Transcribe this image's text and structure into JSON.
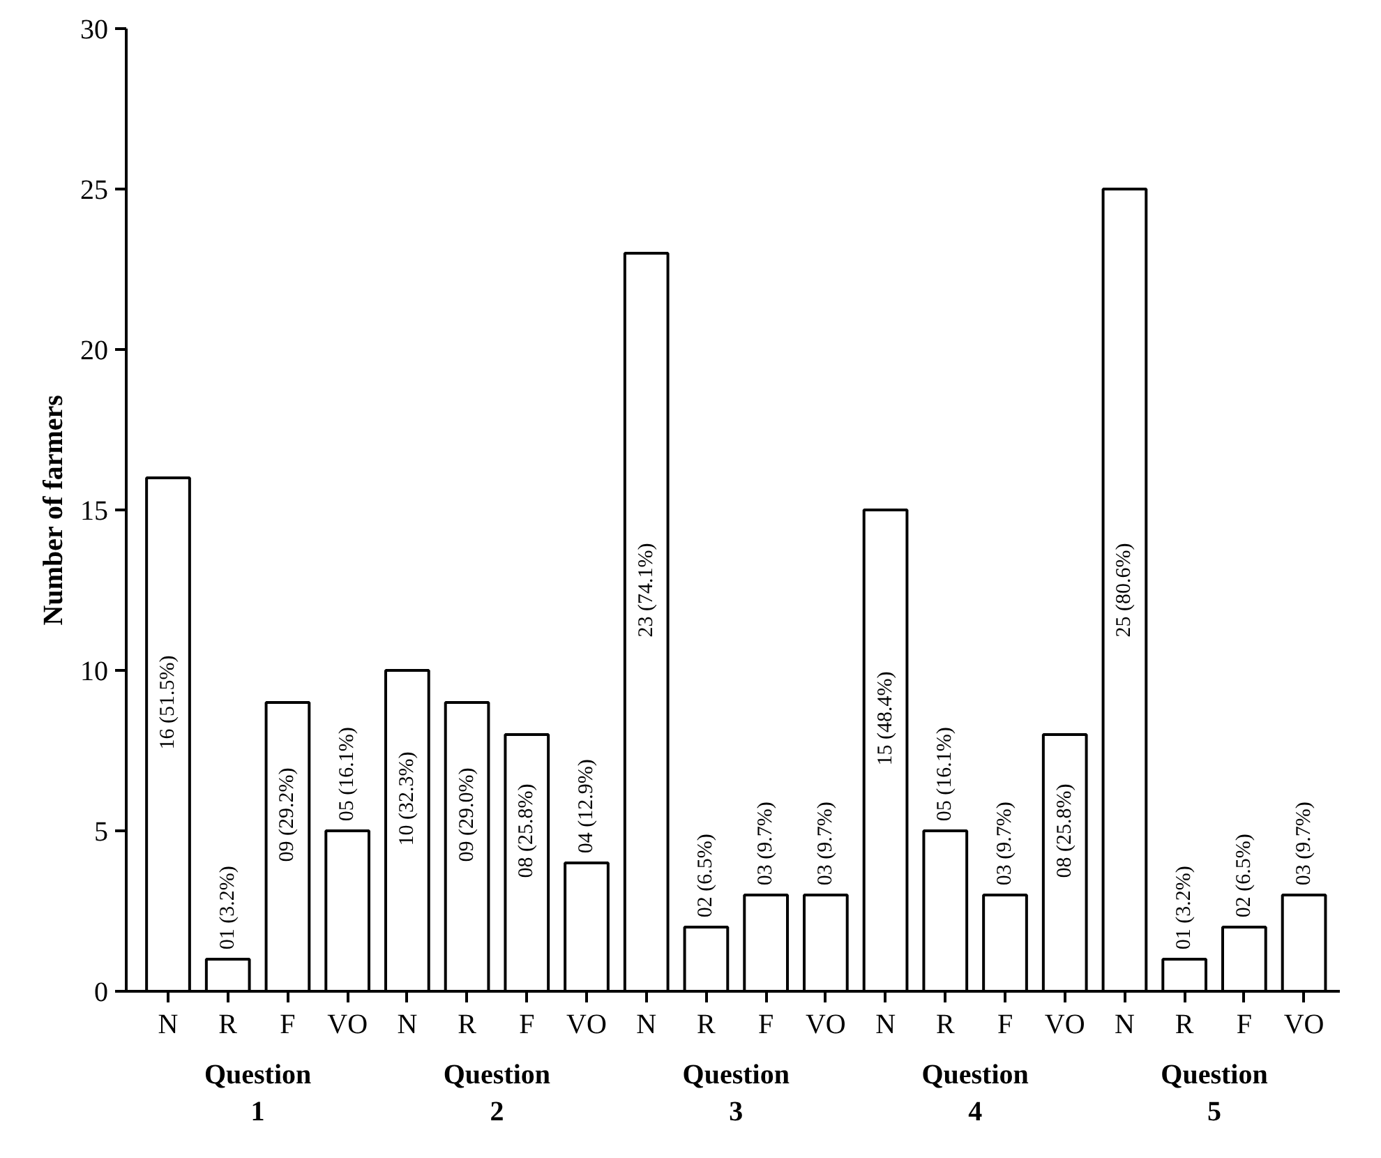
{
  "chart_data": {
    "type": "bar",
    "ylabel": "Number of farmers",
    "categories": [
      "N",
      "R",
      "F",
      "VO",
      "N",
      "R",
      "F",
      "VO",
      "N",
      "R",
      "F",
      "VO",
      "N",
      "R",
      "F",
      "VO",
      "N",
      "R",
      "F",
      "VO"
    ],
    "values": [
      16,
      1,
      9,
      5,
      10,
      9,
      8,
      4,
      23,
      2,
      3,
      3,
      15,
      5,
      3,
      8,
      25,
      1,
      2,
      3
    ],
    "color": "#ffffff",
    "value_labels": [
      "16 (51.5%)",
      "01 (3.2%)",
      "09 (29.2%)",
      "05 (16.1%)",
      "10 (32.3%)",
      "09 (29.0%)",
      "08 (25.8%)",
      "04 (12.9%)",
      "23 (74.1%)",
      "02 (6.5%)",
      "03 (9.7%)",
      "03 (9.7%)",
      "15 (48.4%)",
      "05 (16.1%)",
      "03 (9.7%)",
      "08 (25.8%)",
      "25 (80.6%)",
      "01 (3.2%)",
      "02 (6.5%)",
      "03 (9.7%)"
    ],
    "annotations": [
      "Question\n1",
      "Question\n2",
      "Question\n3",
      "Question\n4",
      "Question\n5"
    ],
    "ylim": [
      0,
      30
    ],
    "yticks": [
      0,
      5,
      10,
      15,
      20,
      25,
      30
    ],
    "grid": false
  }
}
